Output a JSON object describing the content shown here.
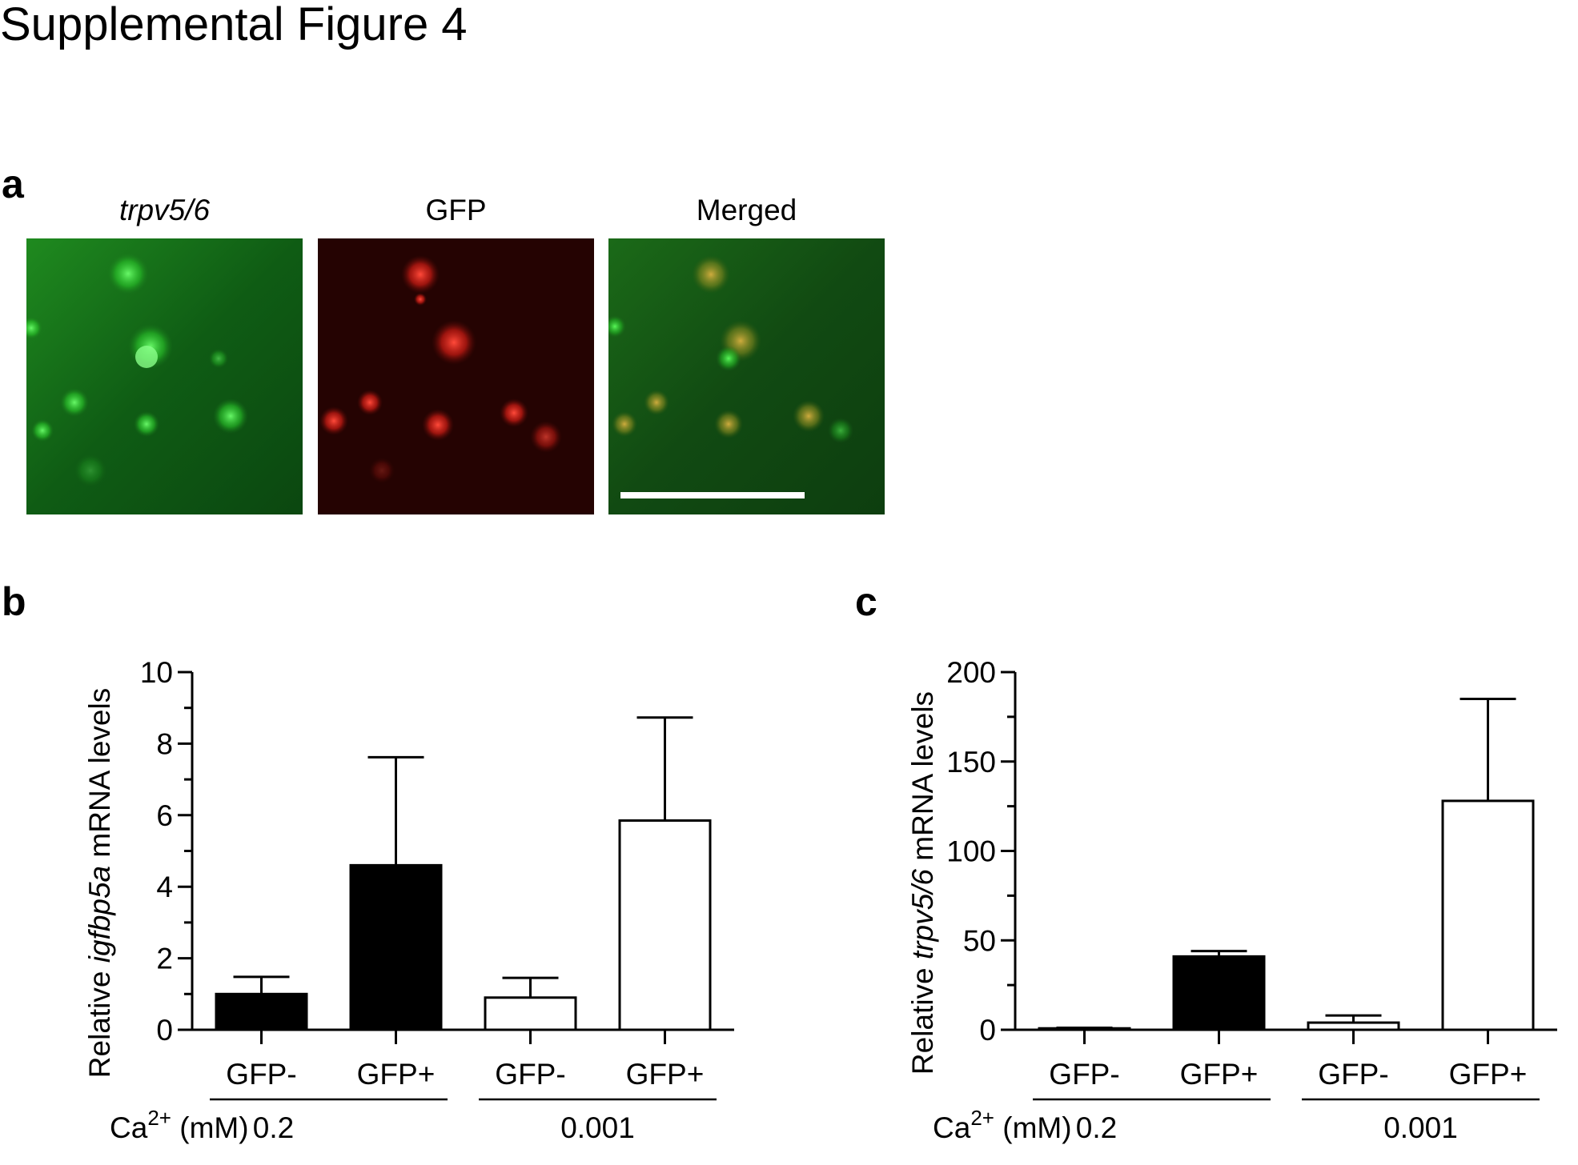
{
  "figure": {
    "title": "Supplemental Figure 4"
  },
  "panel_a": {
    "letter": "a",
    "images": [
      {
        "label": "trpv5/6",
        "italic": true,
        "channel": "green"
      },
      {
        "label": "GFP",
        "italic": false,
        "channel": "red"
      },
      {
        "label": "Merged",
        "italic": false,
        "channel": "merged",
        "scale_bar": true
      }
    ]
  },
  "chart_data": [
    {
      "type": "bar",
      "panel": "b",
      "categories": [
        "GFP-",
        "GFP+",
        "GFP-",
        "GFP+"
      ],
      "values": [
        1.0,
        4.6,
        0.9,
        5.85
      ],
      "errors": [
        0.48,
        3.02,
        0.55,
        2.88
      ],
      "fill": [
        "#000000",
        "#000000",
        "#ffffff",
        "#ffffff"
      ],
      "ylabel_parts": [
        "Relative ",
        "igfbp5a",
        " mRNA levels"
      ],
      "ylim": [
        0,
        10
      ],
      "yticks": [
        0,
        2,
        4,
        6,
        8,
        10
      ],
      "groups": [
        {
          "label": "0.2",
          "bars": [
            0,
            1
          ]
        },
        {
          "label": "0.001",
          "bars": [
            2,
            3
          ]
        }
      ],
      "group_axis_label": {
        "base": "Ca",
        "sup": "2+",
        "rest": " (mM)"
      }
    },
    {
      "type": "bar",
      "panel": "c",
      "categories": [
        "GFP-",
        "GFP+",
        "GFP-",
        "GFP+"
      ],
      "values": [
        0.8,
        41,
        4,
        128
      ],
      "errors": [
        0.3,
        3,
        4,
        57
      ],
      "fill": [
        "#000000",
        "#000000",
        "#ffffff",
        "#ffffff"
      ],
      "ylabel_parts": [
        "Relative ",
        "trpv5/6",
        " mRNA levels"
      ],
      "ylim": [
        0,
        200
      ],
      "yticks": [
        0,
        50,
        100,
        150,
        200
      ],
      "groups": [
        {
          "label": "0.2",
          "bars": [
            0,
            1
          ]
        },
        {
          "label": "0.001",
          "bars": [
            2,
            3
          ]
        }
      ],
      "group_axis_label": {
        "base": "Ca",
        "sup": "2+",
        "rest": " (mM)"
      }
    }
  ]
}
